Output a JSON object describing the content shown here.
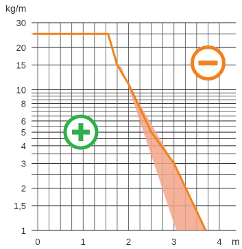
{
  "chart_data": {
    "type": "line",
    "xlabel": "m",
    "ylabel": "kg/m",
    "xlim": [
      0,
      4
    ],
    "ylim": [
      1,
      30
    ],
    "y_scale": "log",
    "grid": true,
    "x_ticks": [
      {
        "value": 0,
        "label": "0"
      },
      {
        "value": 1,
        "label": "1"
      },
      {
        "value": 2,
        "label": "2"
      },
      {
        "value": 3,
        "label": "3"
      },
      {
        "value": 4,
        "label": "4"
      }
    ],
    "y_ticks": [
      {
        "value": 1,
        "label": "1"
      },
      {
        "value": 1.5,
        "label": "1,5"
      },
      {
        "value": 2,
        "label": "2"
      },
      {
        "value": 3,
        "label": "3"
      },
      {
        "value": 4,
        "label": "4"
      },
      {
        "value": 5,
        "label": "5"
      },
      {
        "value": 6,
        "label": "6"
      },
      {
        "value": 8,
        "label": "8"
      },
      {
        "value": 10,
        "label": "10"
      },
      {
        "value": 15,
        "label": "15"
      },
      {
        "value": 20,
        "label": "20"
      },
      {
        "value": 30,
        "label": "30"
      }
    ],
    "series": [
      {
        "color": "#f0821e",
        "points": [
          [
            -0.1,
            25
          ],
          [
            1.55,
            25
          ],
          [
            1.75,
            15
          ],
          [
            2.0,
            11
          ],
          [
            2.5,
            5
          ],
          [
            3.0,
            3
          ],
          [
            3.7,
            1
          ]
        ]
      }
    ],
    "tolerance_band": {
      "color": "#f3a58a",
      "points": [
        [
          1.75,
          15
        ],
        [
          3.0,
          3
        ],
        [
          3.7,
          1
        ],
        [
          3.05,
          1
        ],
        [
          1.85,
          14.5
        ]
      ]
    },
    "markers": [
      {
        "name": "plus-badge",
        "symbol": "+",
        "color": "#2fae4a",
        "at": [
          0.95,
          5.0
        ]
      },
      {
        "name": "minus-badge",
        "symbol": "−",
        "color": "#f0821e",
        "at": [
          3.75,
          15.5
        ]
      }
    ]
  }
}
